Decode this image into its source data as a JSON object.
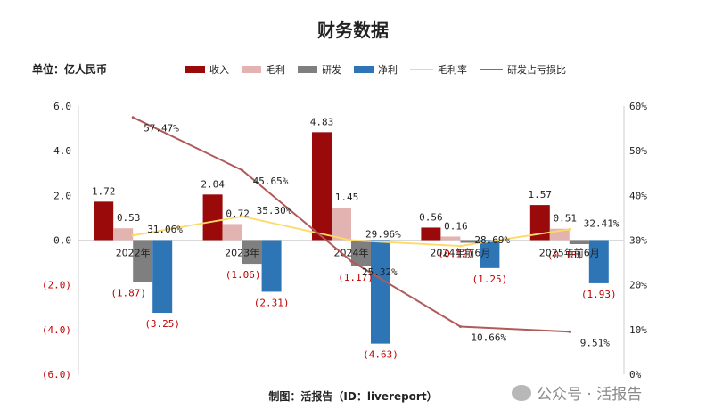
{
  "colors": {
    "revenue": "#9b0a0a",
    "gross_profit": "#e3b3b1",
    "rnd": "#7f7f7f",
    "net_profit": "#2e75b6",
    "gross_margin": "#ffd966",
    "rnd_ratio": "#b15a5a",
    "negative_label": "#c00000"
  },
  "header": {
    "title": "财务数据",
    "unit": "单位：亿人民币"
  },
  "footer": {
    "credit": "制图：活报告（ID：livereport）"
  },
  "watermark": {
    "text": "公众号 · 活报告"
  },
  "chart_data": {
    "type": "bar",
    "title": "财务数据",
    "categories": [
      "2022年",
      "2023年",
      "2024年",
      "2024年前6月",
      "2025年前6月"
    ],
    "series": [
      {
        "name": "收入",
        "kind": "bar",
        "values": [
          1.72,
          2.04,
          4.83,
          0.56,
          1.57
        ],
        "labels": [
          "1.72",
          "2.04",
          "4.83",
          "0.56",
          "1.57"
        ]
      },
      {
        "name": "毛利",
        "kind": "bar",
        "values": [
          0.53,
          0.72,
          1.45,
          0.16,
          0.51
        ],
        "labels": [
          "0.53",
          "0.72",
          "1.45",
          "0.16",
          "0.51"
        ]
      },
      {
        "name": "研发",
        "kind": "bar",
        "values": [
          -1.87,
          -1.06,
          -1.17,
          -0.12,
          -0.18
        ],
        "labels": [
          "(1.87)",
          "(1.06)",
          "(1.17)",
          "(0.12)",
          "(0.18)"
        ]
      },
      {
        "name": "净利",
        "kind": "bar",
        "values": [
          -3.25,
          -2.31,
          -4.63,
          -1.25,
          -1.93
        ],
        "labels": [
          "(3.25)",
          "(2.31)",
          "(4.63)",
          "(1.25)",
          "(1.93)"
        ]
      },
      {
        "name": "毛利率",
        "kind": "line",
        "axis": "right",
        "values": [
          31.06,
          35.3,
          29.96,
          28.69,
          32.41
        ],
        "labels": [
          "31.06%",
          "35.30%",
          "29.96%",
          "28.69%",
          "32.41%"
        ]
      },
      {
        "name": "研发占亏损比",
        "kind": "line",
        "axis": "right",
        "values": [
          57.47,
          45.65,
          25.32,
          10.66,
          9.51
        ],
        "labels": [
          "57.47%",
          "45.65%",
          "25.32%",
          "10.66%",
          "9.51%"
        ]
      }
    ],
    "ylim": [
      -6,
      6
    ],
    "yticks": [
      "6.0",
      "4.0",
      "2.0",
      "0.0",
      "(2.0)",
      "(4.0)",
      "(6.0)"
    ],
    "y2lim": [
      0,
      60
    ],
    "y2ticks": [
      "60%",
      "50%",
      "40%",
      "30%",
      "20%",
      "10%",
      "0%"
    ],
    "legend_position": "top",
    "grid": false
  }
}
